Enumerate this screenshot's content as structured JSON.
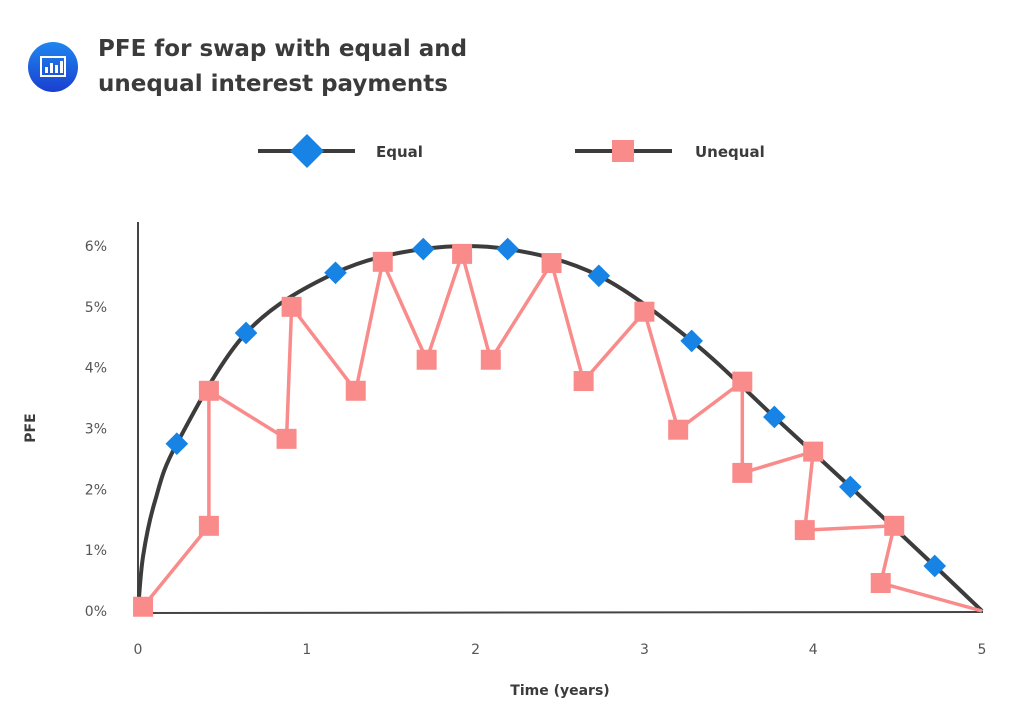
{
  "header": {
    "icon": "bar-chart-icon",
    "title_line1": "PFE for swap with equal and",
    "title_line2": "unequal interest payments"
  },
  "colors": {
    "equal_marker": "#1683e5",
    "unequal": "#f98b8b",
    "curve": "#3c3c3c",
    "icon_bg": "#1a5fe0"
  },
  "chart_data": {
    "type": "line",
    "title": "PFE for swap with equal and unequal interest payments",
    "xlabel": "Time (years)",
    "ylabel": "PFE",
    "xlim": [
      0,
      5
    ],
    "ylim": [
      0,
      6
    ],
    "x_ticks": [
      "0",
      "1",
      "2",
      "3",
      "4",
      "5"
    ],
    "y_ticks": [
      "0%",
      "1%",
      "2%",
      "3%",
      "4%",
      "5%",
      "6%"
    ],
    "grid": false,
    "legend": {
      "placement": "top",
      "entries": [
        "Equal",
        "Unequal"
      ]
    },
    "series": [
      {
        "name": "Equal",
        "marker": "diamond",
        "line": "smooth curve from (0,0) to (5,0)",
        "points": [
          [
            0.23,
            2.75
          ],
          [
            0.64,
            4.57
          ],
          [
            1.17,
            5.56
          ],
          [
            1.69,
            5.95
          ],
          [
            2.19,
            5.95
          ],
          [
            2.73,
            5.51
          ],
          [
            3.28,
            4.44
          ],
          [
            3.77,
            3.19
          ],
          [
            4.22,
            2.04
          ],
          [
            4.72,
            0.74
          ]
        ]
      },
      {
        "name": "Unequal",
        "marker": "square",
        "points": [
          [
            0.03,
            0.07
          ],
          [
            0.42,
            1.4
          ],
          [
            0.42,
            3.62
          ],
          [
            0.88,
            2.83
          ],
          [
            0.91,
            5.0
          ],
          [
            1.29,
            3.62
          ],
          [
            1.45,
            5.74
          ],
          [
            1.71,
            4.13
          ],
          [
            1.92,
            5.87
          ],
          [
            2.09,
            4.13
          ],
          [
            2.45,
            5.72
          ],
          [
            2.64,
            3.78
          ],
          [
            3.0,
            4.92
          ],
          [
            3.2,
            2.98
          ],
          [
            3.58,
            3.77
          ],
          [
            3.58,
            2.27
          ],
          [
            4.0,
            2.62
          ],
          [
            3.95,
            1.33
          ],
          [
            4.48,
            1.4
          ],
          [
            4.4,
            0.46
          ],
          [
            5.0,
            0.0
          ]
        ]
      }
    ]
  }
}
